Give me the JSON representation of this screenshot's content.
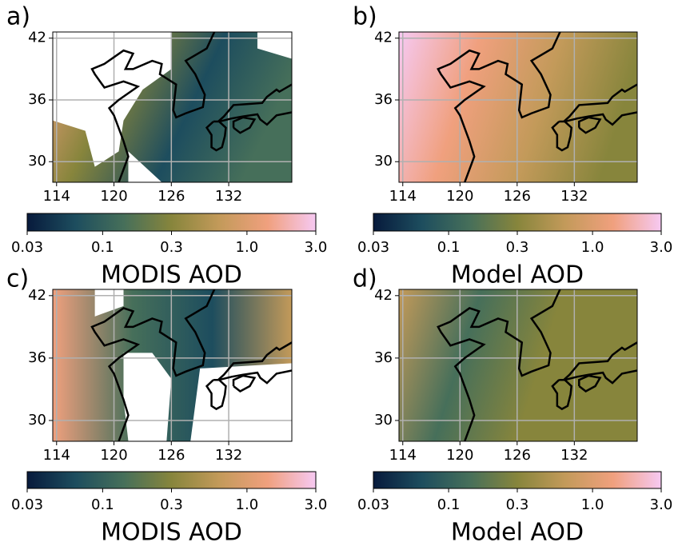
{
  "colormap": [
    "#071a3c",
    "#1d4d5e",
    "#466f5a",
    "#87853c",
    "#c39a5a",
    "#f0a07e",
    "#f6c9f2"
  ],
  "panels": [
    {
      "label": "a)",
      "xlim": [
        113.6,
        138.6
      ],
      "ylim": [
        28,
        42.6
      ],
      "xticks": [
        114,
        120,
        126,
        132
      ],
      "yticks": [
        30,
        36,
        42
      ],
      "grid": true,
      "colorbar": {
        "label": "MODIS AOD",
        "lim": [
          0.03,
          3
        ],
        "scale": "log",
        "ticks": [
          0.03,
          0.1,
          0.3,
          {
            "value": 1,
            "label": "1.0"
          },
          {
            "value": 3,
            "label": "3.0"
          }
        ]
      }
    },
    {
      "label": "b)",
      "xlim": [
        113.6,
        138.6
      ],
      "ylim": [
        28,
        42.6
      ],
      "xticks": [
        114,
        120,
        126,
        132
      ],
      "yticks": [
        30,
        36,
        42
      ],
      "grid": true,
      "colorbar": {
        "label": "Model AOD",
        "lim": [
          0.03,
          3
        ],
        "scale": "log",
        "ticks": [
          0.03,
          0.1,
          0.3,
          {
            "value": 1,
            "label": "1.0"
          },
          {
            "value": 3,
            "label": "3.0"
          }
        ]
      }
    },
    {
      "label": "c)",
      "xlim": [
        113.6,
        138.6
      ],
      "ylim": [
        28,
        42.6
      ],
      "xticks": [
        114,
        120,
        126,
        132
      ],
      "yticks": [
        30,
        36,
        42
      ],
      "grid": true,
      "colorbar": {
        "label": "MODIS AOD",
        "lim": [
          0.03,
          3
        ],
        "scale": "log",
        "ticks": [
          0.03,
          0.1,
          0.3,
          {
            "value": 1,
            "label": "1.0"
          },
          {
            "value": 3,
            "label": "3.0"
          }
        ]
      }
    },
    {
      "label": "d)",
      "xlim": [
        113.6,
        138.6
      ],
      "ylim": [
        28,
        42.6
      ],
      "xticks": [
        114,
        120,
        126,
        132
      ],
      "yticks": [
        30,
        36,
        42
      ],
      "grid": true,
      "colorbar": {
        "label": "Model AOD",
        "lim": [
          0.03,
          3
        ],
        "scale": "log",
        "ticks": [
          0.03,
          0.1,
          0.3,
          {
            "value": 1,
            "label": "1.0"
          },
          {
            "value": 3,
            "label": "3.0"
          }
        ]
      }
    }
  ]
}
